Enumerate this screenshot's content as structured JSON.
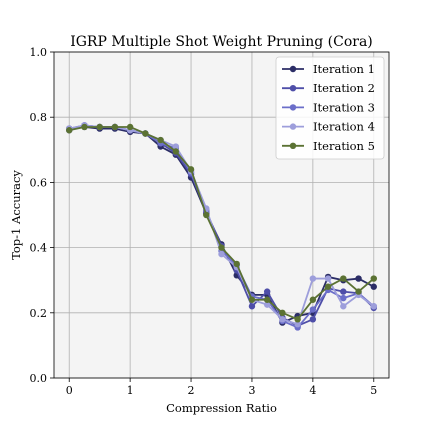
{
  "chart_data": {
    "type": "line",
    "title": "IGRP Multiple Shot Weight Pruning (Cora)",
    "xlabel": "Compression Ratio",
    "ylabel": "Top-1 Accuracy",
    "xlim": [
      -0.25,
      5.25
    ],
    "ylim": [
      0.0,
      1.0
    ],
    "xticks": [
      0,
      1,
      2,
      3,
      4,
      5
    ],
    "yticks": [
      0.0,
      0.2,
      0.4,
      0.6,
      0.8,
      1.0
    ],
    "xtick_labels": [
      "0",
      "1",
      "2",
      "3",
      "4",
      "5"
    ],
    "ytick_labels": [
      "0.0",
      "0.2",
      "0.4",
      "0.6",
      "0.8",
      "1.0"
    ],
    "grid": true,
    "legend_position": "top-right",
    "x": [
      0,
      0.25,
      0.5,
      0.75,
      1.0,
      1.25,
      1.5,
      1.75,
      2.0,
      2.25,
      2.5,
      2.75,
      3.0,
      3.25,
      3.5,
      3.75,
      4.0,
      4.25,
      4.5,
      4.75,
      5.0
    ],
    "series": [
      {
        "name": "Iteration 1",
        "color": "#2b2d66",
        "values": [
          0.765,
          0.77,
          0.765,
          0.765,
          0.755,
          0.75,
          0.71,
          0.685,
          0.615,
          0.505,
          0.41,
          0.315,
          0.255,
          0.255,
          0.17,
          0.19,
          0.2,
          0.31,
          0.3,
          0.305,
          0.28
        ]
      },
      {
        "name": "Iteration 2",
        "color": "#4e4ea8",
        "values": [
          0.76,
          0.775,
          0.77,
          0.77,
          0.76,
          0.75,
          0.72,
          0.69,
          0.625,
          0.51,
          0.405,
          0.33,
          0.22,
          0.265,
          0.185,
          0.16,
          0.18,
          0.275,
          0.265,
          0.26,
          0.215
        ]
      },
      {
        "name": "Iteration 3",
        "color": "#6b6ec9",
        "values": [
          0.765,
          0.775,
          0.77,
          0.77,
          0.76,
          0.75,
          0.72,
          0.705,
          0.63,
          0.515,
          0.39,
          0.345,
          0.25,
          0.24,
          0.175,
          0.155,
          0.21,
          0.27,
          0.245,
          0.26,
          0.22
        ]
      },
      {
        "name": "Iteration 4",
        "color": "#9d9edb",
        "values": [
          0.765,
          0.775,
          0.77,
          0.77,
          0.76,
          0.75,
          0.73,
          0.71,
          0.635,
          0.52,
          0.38,
          0.34,
          0.24,
          0.225,
          0.18,
          0.165,
          0.305,
          0.305,
          0.22,
          0.255,
          0.22
        ]
      },
      {
        "name": "Iteration 5",
        "color": "#5b7233",
        "values": [
          0.76,
          0.77,
          0.77,
          0.77,
          0.77,
          0.75,
          0.73,
          0.695,
          0.64,
          0.5,
          0.4,
          0.35,
          0.24,
          0.24,
          0.2,
          0.18,
          0.24,
          0.28,
          0.305,
          0.265,
          0.305
        ]
      }
    ]
  }
}
